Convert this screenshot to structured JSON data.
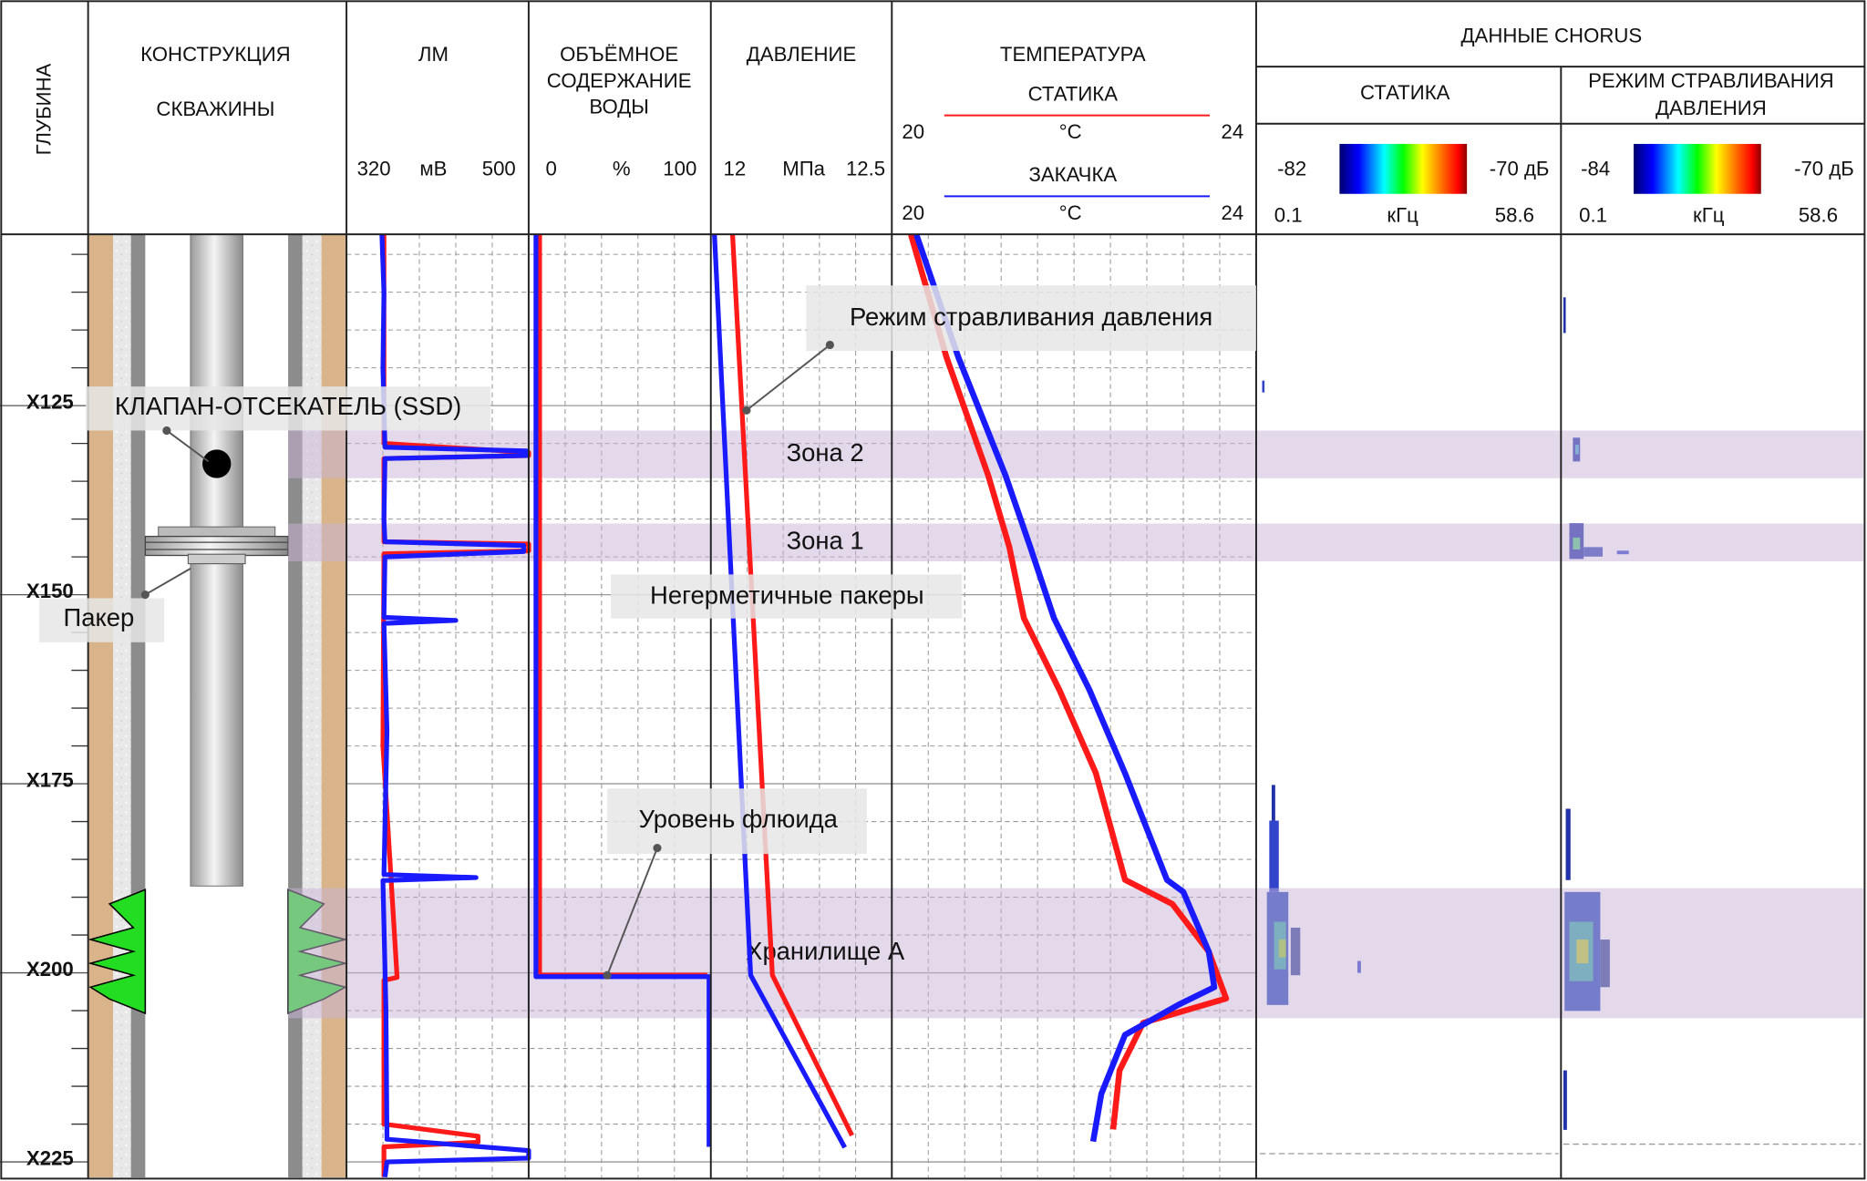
{
  "chart_data": {
    "type": "well-log",
    "depth": {
      "title": "ГЛУБИНА",
      "range": [
        102.35,
        227.05
      ],
      "ticks": [
        {
          "value": 125,
          "label": "X125"
        },
        {
          "value": 150,
          "label": "X150"
        },
        {
          "value": 175,
          "label": "X175"
        },
        {
          "value": 200,
          "label": "X200"
        },
        {
          "value": 225,
          "label": "X225"
        }
      ]
    },
    "construction": {
      "title": [
        "КОНСТРУКЦИЯ",
        "СКВАЖИНЫ"
      ],
      "labels": [
        "КЛАПАН-ОТСЕКАТЕЛЬ (SSD)",
        "Пакер"
      ]
    },
    "tracks": {
      "lm": {
        "title": [
          "ЛМ"
        ],
        "min": 320,
        "max": 500,
        "unit": "мВ",
        "series": [
          {
            "color": "#ff1a1a",
            "depth": [
              102.4,
              130,
              131.2,
              131.6,
              132,
              143,
              143.3,
              144.2,
              144.6,
              170,
              200.6,
              201,
              220,
              221.6,
              222.4,
              223,
              227
            ],
            "values": [
              357,
              357,
              500,
              500,
              357,
              357,
              500,
              500,
              357,
              356,
              370,
              357,
              357,
              450,
              450,
              357,
              357
            ]
          },
          {
            "color": "#1a1aff",
            "depth": [
              102.4,
              110,
              120,
              130.5,
              131,
              131.6,
              132,
              140,
              143,
              143.5,
              144.3,
              145,
              153,
              153.4,
              153.8,
              168,
              187,
              187.4,
              187.8,
              205,
              222,
              223.5,
              224.5,
              225,
              227
            ],
            "values": [
              355,
              357,
              356,
              358,
              498,
              498,
              358,
              357,
              358,
              495,
              495,
              358,
              357,
              428,
              357,
              360,
              357,
              448,
              356,
              359,
              360,
              500,
              500,
              360,
              358
            ]
          }
        ]
      },
      "water": {
        "title": [
          "ОБЪЁМНОЕ",
          "СОДЕРЖАНИЕ",
          "ВОДЫ"
        ],
        "min": 0,
        "max": 100,
        "unit": "%",
        "series": [
          {
            "color": "#ff1a1a",
            "depth": [
              102.4,
              200.3,
              200.3
            ],
            "values": [
              6,
              6,
              98
            ]
          },
          {
            "color": "#1a1aff",
            "depth": [
              102.4,
              200.5,
              200.5,
              223
            ],
            "values": [
              4,
              4,
              99,
              99
            ]
          }
        ]
      },
      "pressure": {
        "title": [
          "ДАВЛЕНИЕ"
        ],
        "min": 12,
        "max": 12.5,
        "unit": "МПа",
        "series": [
          {
            "color": "#ff1a1a",
            "depth": [
              102.4,
              200.3,
              221.5
            ],
            "values": [
              12.06,
              12.17,
              12.39
            ]
          },
          {
            "color": "#1a1aff",
            "depth": [
              102.4,
              200.3,
              223.1
            ],
            "values": [
              12.01,
              12.11,
              12.37
            ]
          }
        ]
      },
      "temperature": {
        "title": [
          "ТЕМПЕРАТУРА"
        ],
        "series": [
          {
            "name": "СТАТИКА",
            "min": 20,
            "max": 24,
            "unit": "°C",
            "color": "#ff1a1a",
            "depth": [
              102.4,
              118.6,
              134.3,
              143.7,
              153.1,
              162.6,
              173.6,
              187.7,
              190.9,
              197.2,
              203.4,
              206.6,
              212.9,
              220.7
            ],
            "values": [
              20.21,
              20.6,
              21.06,
              21.29,
              21.45,
              21.84,
              22.24,
              22.56,
              23.08,
              23.48,
              23.67,
              22.76,
              22.5,
              22.43
            ]
          },
          {
            "name": "ЗАКАЧКА",
            "min": 20,
            "max": 24,
            "unit": "°C",
            "color": "#1a1aff",
            "depth": [
              102.4,
              118.6,
              134.3,
              143.7,
              153.1,
              162.6,
              173.6,
              187.7,
              189.3,
              197.2,
              201.9,
              204.2,
              208.2,
              216,
              222.3
            ],
            "values": [
              20.27,
              20.73,
              21.25,
              21.52,
              21.78,
              22.17,
              22.56,
              23.02,
              23.2,
              23.48,
              23.54,
              23.15,
              22.56,
              22.3,
              22.21
            ]
          }
        ]
      }
    },
    "chorus": {
      "title": "ДАННЫЕ CHORUS",
      "panels": [
        {
          "title": [
            "СТАТИКА"
          ],
          "db_min": -82,
          "db_max": -70,
          "db_unit": "дБ",
          "f_min": 0.1,
          "f_max": 58.6,
          "f_unit": "кГц"
        },
        {
          "title": [
            "РЕЖИМ СТРАВЛИВАНИЯ",
            "ДАВЛЕНИЯ"
          ],
          "db_min": -84,
          "db_max": -70,
          "db_unit": "дБ",
          "f_min": 0.1,
          "f_max": 58.6,
          "f_unit": "кГц"
        }
      ]
    },
    "zones": [
      {
        "name": "Зона 2",
        "top": 128.3,
        "bottom": 134.6
      },
      {
        "name": "Зона 1",
        "top": 140.6,
        "bottom": 145.6
      },
      {
        "name": "Хранилище A",
        "top": 188.8,
        "bottom": 206
      }
    ],
    "annotations": [
      "Режим стравливания давления",
      "Негерметичные пакеры",
      "Уровень флюида"
    ]
  }
}
